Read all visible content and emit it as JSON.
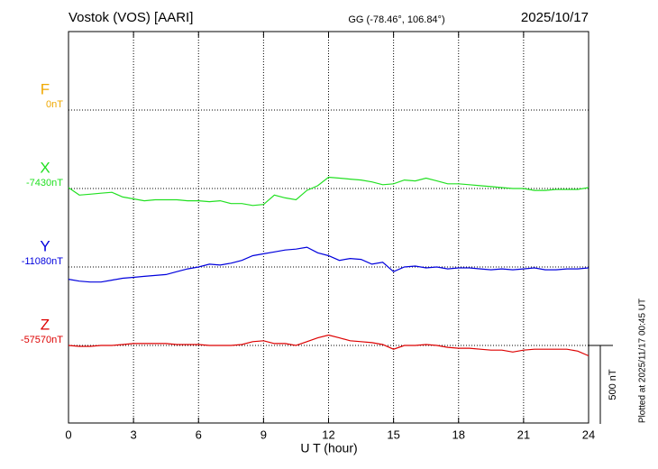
{
  "chart_data": {
    "type": "line",
    "title": "Vostok (VOS)  [AARI]",
    "subtitle": "GG (-78.46°, 106.84°)",
    "date": "2025/10/17",
    "note": "Plotted at 2025/11/17 00:45 UT",
    "x_label": "U T (hour)",
    "xlim": [
      0,
      24
    ],
    "xticks": [
      0,
      3,
      6,
      9,
      12,
      15,
      18,
      21,
      24
    ],
    "scale": {
      "value": 500,
      "label": "500 nT"
    },
    "grid": true,
    "x": [
      0,
      0.5,
      1,
      1.5,
      2,
      2.5,
      3,
      3.5,
      4,
      4.5,
      5,
      5.5,
      6,
      6.5,
      7,
      7.5,
      8,
      8.5,
      9,
      9.5,
      10,
      10.5,
      11,
      11.5,
      12,
      12.5,
      13,
      13.5,
      14,
      14.5,
      15,
      15.5,
      16,
      16.5,
      17,
      17.5,
      18,
      18.5,
      19,
      19.5,
      20,
      20.5,
      21,
      21.5,
      22,
      22.5,
      23,
      23.5,
      24
    ],
    "series": [
      {
        "name": "F",
        "color": "#f0a800",
        "baseline": {
          "value": 0,
          "label": "0nT"
        },
        "values": [
          null,
          null,
          null,
          null,
          null,
          null,
          null,
          null,
          null,
          null,
          null,
          null,
          null,
          null,
          null,
          null,
          null,
          null,
          null,
          null,
          null,
          null,
          null,
          null,
          null,
          null,
          null,
          null,
          null,
          null,
          null,
          null,
          null,
          null,
          null,
          null,
          null,
          null,
          null,
          null,
          null,
          null,
          null,
          null,
          null,
          null,
          null,
          null,
          null
        ]
      },
      {
        "name": "X",
        "color": "#22e022",
        "baseline": {
          "value": -7430,
          "label": "-7430nT"
        },
        "values": [
          -7424,
          -7472,
          -7466,
          -7460,
          -7454,
          -7484,
          -7496,
          -7508,
          -7502,
          -7502,
          -7502,
          -7508,
          -7508,
          -7514,
          -7508,
          -7526,
          -7526,
          -7538,
          -7532,
          -7472,
          -7490,
          -7502,
          -7442,
          -7412,
          -7358,
          -7364,
          -7370,
          -7376,
          -7388,
          -7406,
          -7400,
          -7376,
          -7382,
          -7364,
          -7382,
          -7400,
          -7400,
          -7406,
          -7412,
          -7418,
          -7424,
          -7430,
          -7430,
          -7442,
          -7442,
          -7436,
          -7436,
          -7436,
          -7424
        ]
      },
      {
        "name": "Y",
        "color": "#0000dd",
        "baseline": {
          "value": -11080,
          "label": "-11080nT"
        },
        "values": [
          -11158,
          -11170,
          -11176,
          -11176,
          -11164,
          -11152,
          -11146,
          -11140,
          -11134,
          -11128,
          -11110,
          -11092,
          -11080,
          -11062,
          -11068,
          -11056,
          -11038,
          -11008,
          -10996,
          -10984,
          -10972,
          -10966,
          -10954,
          -10990,
          -11008,
          -11038,
          -11026,
          -11032,
          -11062,
          -11050,
          -11110,
          -11080,
          -11074,
          -11086,
          -11080,
          -11092,
          -11086,
          -11086,
          -11092,
          -11098,
          -11092,
          -11098,
          -11092,
          -11086,
          -11098,
          -11098,
          -11092,
          -11092,
          -11086
        ]
      },
      {
        "name": "Z",
        "color": "#dd0000",
        "baseline": {
          "value": -57570,
          "label": "-57570nT"
        },
        "values": [
          -57570,
          -57576,
          -57576,
          -57570,
          -57570,
          -57564,
          -57558,
          -57558,
          -57558,
          -57558,
          -57564,
          -57564,
          -57564,
          -57570,
          -57570,
          -57570,
          -57564,
          -57546,
          -57540,
          -57558,
          -57558,
          -57570,
          -57546,
          -57522,
          -57504,
          -57522,
          -57540,
          -57546,
          -57552,
          -57564,
          -57594,
          -57570,
          -57570,
          -57564,
          -57570,
          -57582,
          -57588,
          -57588,
          -57594,
          -57600,
          -57600,
          -57612,
          -57600,
          -57594,
          -57594,
          -57594,
          -57594,
          -57606,
          -57636
        ]
      }
    ]
  }
}
